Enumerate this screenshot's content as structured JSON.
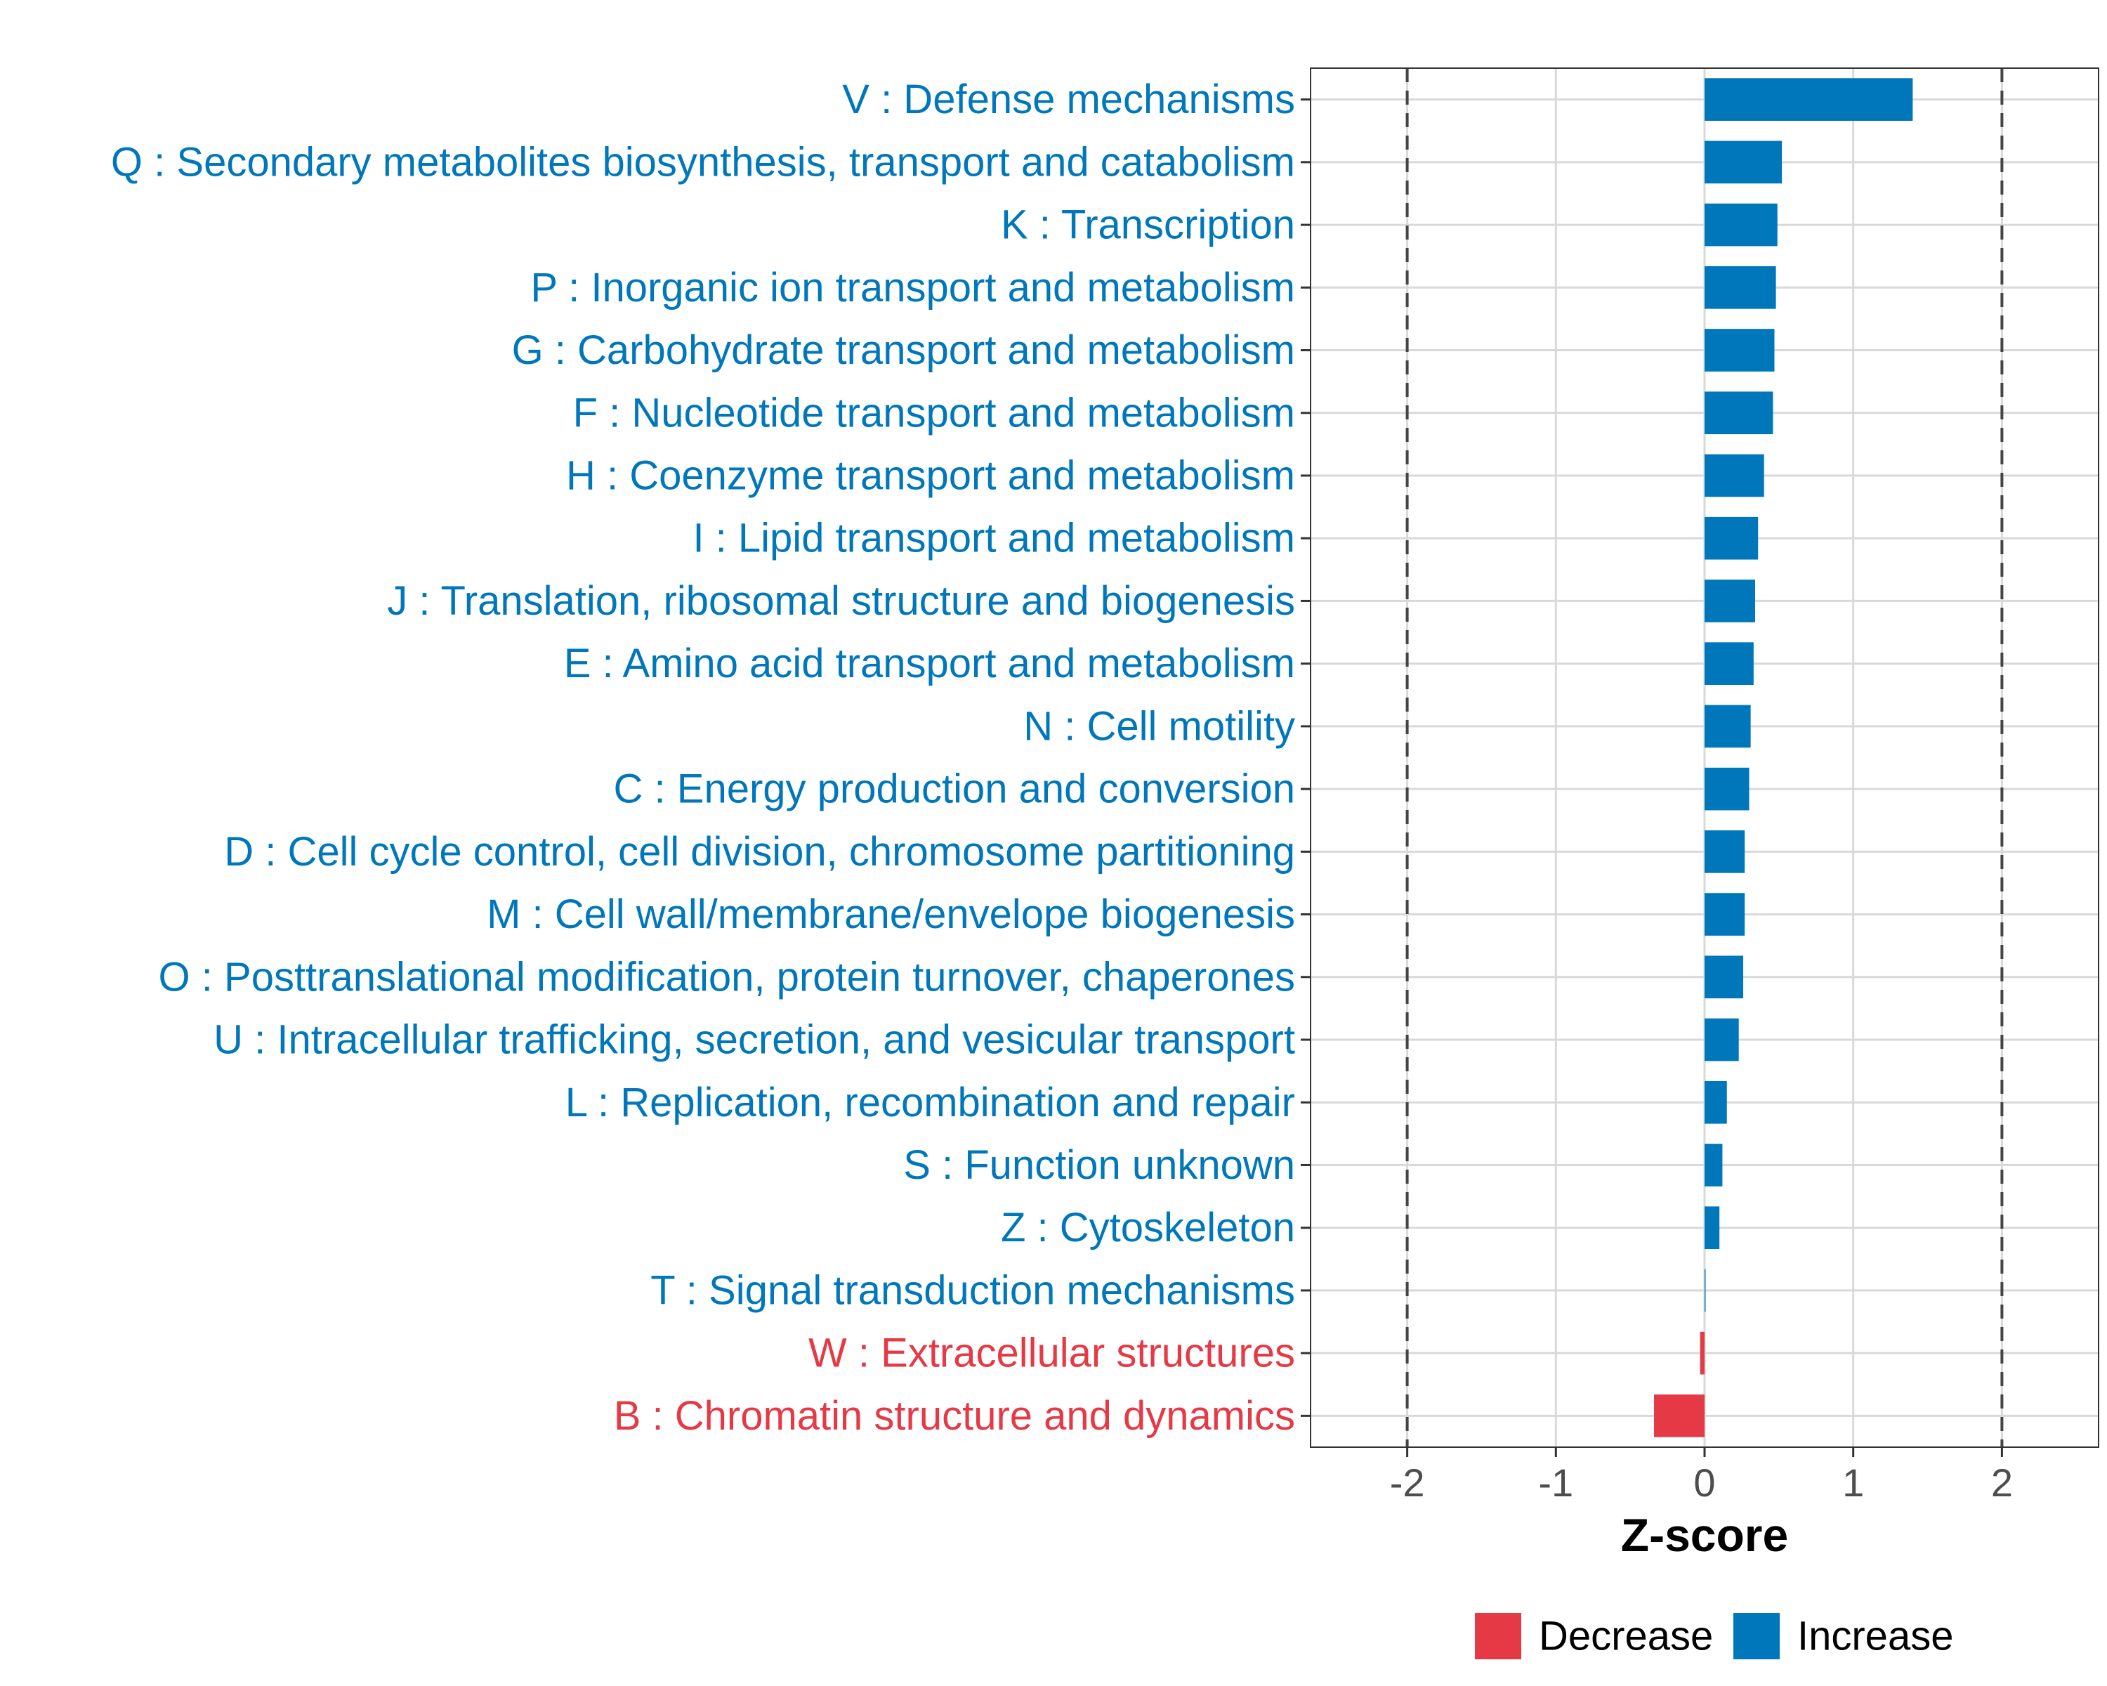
{
  "chart_data": {
    "type": "bar",
    "orientation": "horizontal",
    "categories": [
      "V : Defense mechanisms",
      "Q : Secondary metabolites biosynthesis, transport and catabolism",
      "K : Transcription",
      "P : Inorganic ion transport and metabolism",
      "G : Carbohydrate transport and metabolism",
      "F : Nucleotide transport and metabolism",
      "H : Coenzyme transport and metabolism",
      "I : Lipid transport and metabolism",
      "J : Translation, ribosomal structure and biogenesis",
      "E : Amino acid transport and metabolism",
      "N : Cell motility",
      "C : Energy production and conversion",
      "D : Cell cycle control, cell division, chromosome partitioning",
      "M : Cell wall/membrane/envelope biogenesis",
      "O : Posttranslational modification, protein turnover, chaperones",
      "U : Intracellular trafficking, secretion, and vesicular transport",
      "L : Replication, recombination and repair",
      "S : Function unknown",
      "Z : Cytoskeleton",
      "T : Signal transduction mechanisms",
      "W : Extracellular structures",
      "B : Chromatin structure and dynamics"
    ],
    "values": [
      1.4,
      0.52,
      0.49,
      0.48,
      0.47,
      0.46,
      0.4,
      0.36,
      0.34,
      0.33,
      0.31,
      0.3,
      0.27,
      0.27,
      0.26,
      0.23,
      0.15,
      0.12,
      0.1,
      0.005,
      -0.03,
      -0.34
    ],
    "xlabel": "Z-score",
    "xlim": [
      -2.65,
      2.65
    ],
    "xticks": [
      -2,
      -1,
      0,
      1,
      2
    ],
    "xtick_labels": [
      "-2",
      "-1",
      "0",
      "1",
      "2"
    ],
    "reference_lines": [
      -2,
      2
    ],
    "grid": true,
    "legend": {
      "position": "bottom",
      "entries": [
        {
          "label": "Decrease",
          "color": "#e63946"
        },
        {
          "label": "Increase",
          "color": "#0077bb"
        }
      ]
    },
    "colors": {
      "increase": "#0077bb",
      "decrease": "#e63946",
      "grid": "#d9d9d9",
      "reference_line": "#444444"
    }
  }
}
